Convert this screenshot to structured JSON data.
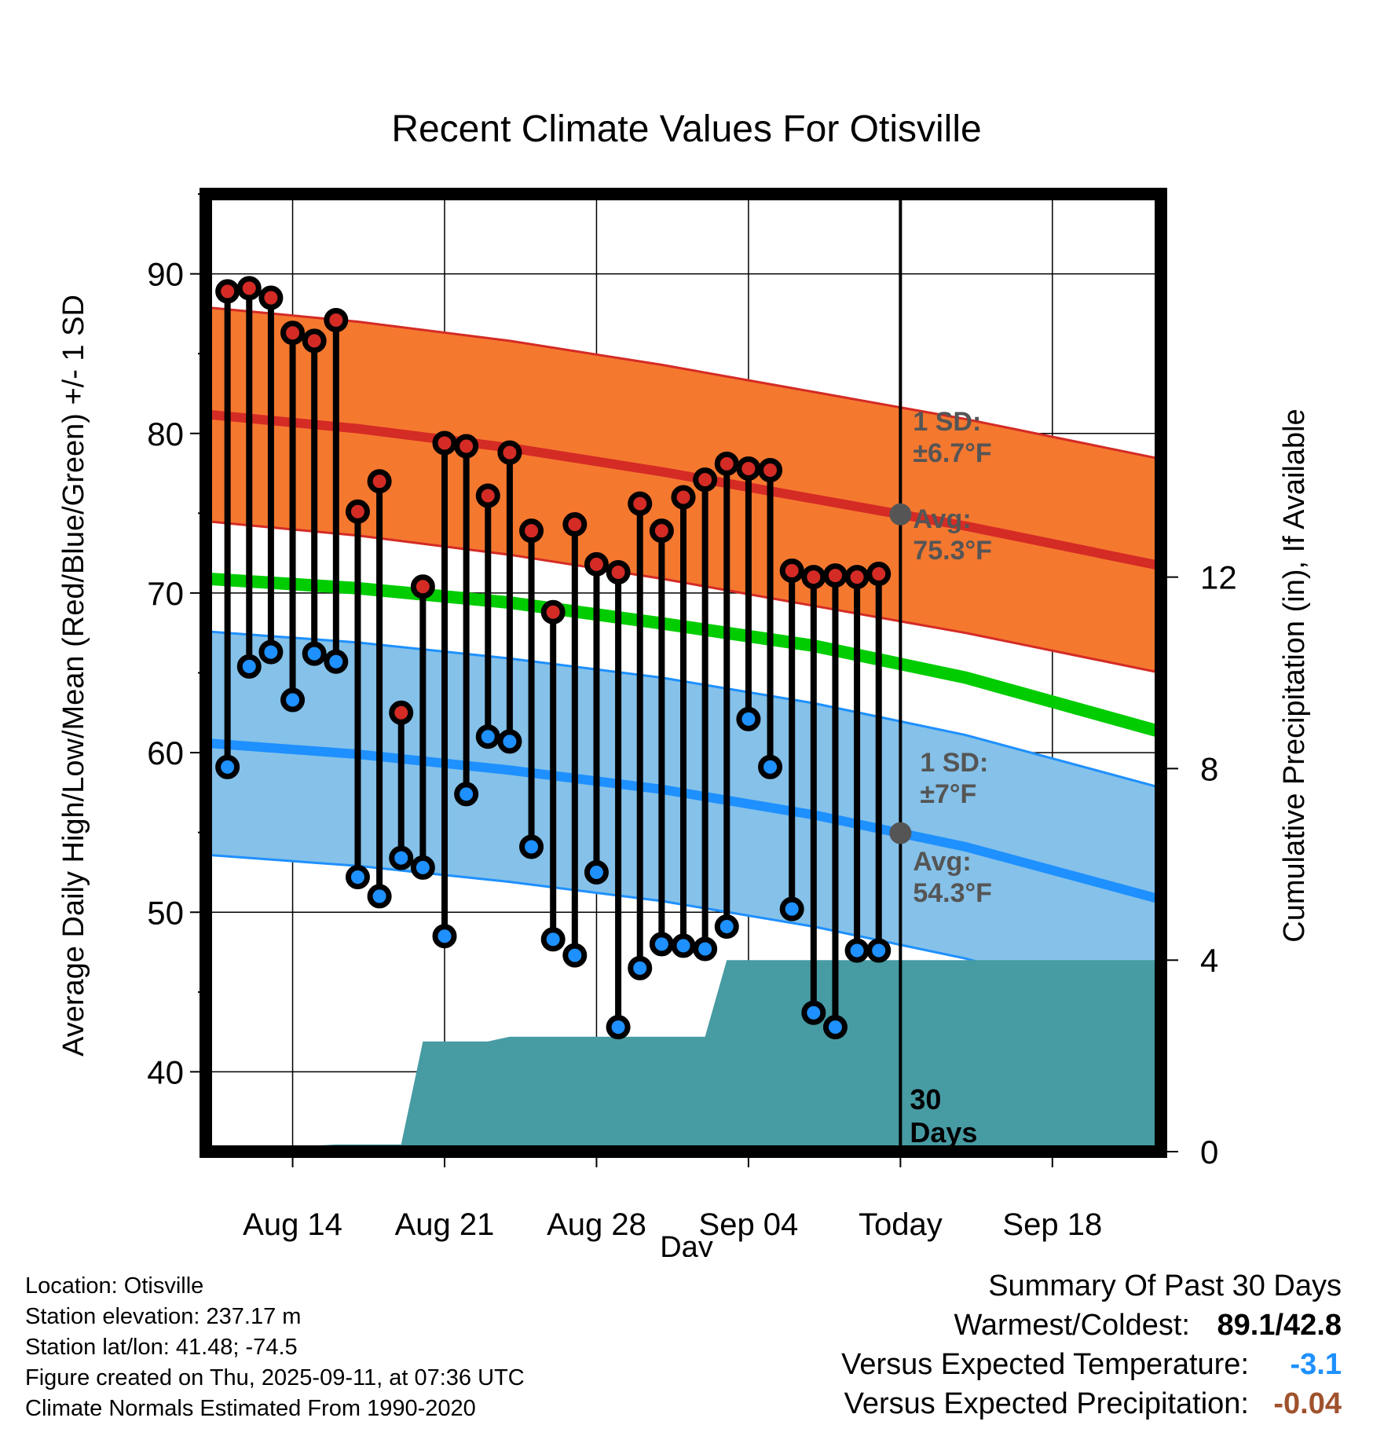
{
  "chart_data": {
    "type": "line",
    "title": "Recent Climate Values For Otisville",
    "xlabel": "Day",
    "ylabel": "Average Daily High/Low/Mean (Red/Blue/Green) +/- 1 SD",
    "y2label": "Cumulative Precipitation (in), If Available",
    "x_range": [
      "2025-08-10",
      "2025-09-23"
    ],
    "ylim": [
      35,
      95
    ],
    "y2lim": [
      0,
      20
    ],
    "x_ticks": [
      {
        "date": "2025-08-14",
        "label": "Aug 14"
      },
      {
        "date": "2025-08-21",
        "label": "Aug 21"
      },
      {
        "date": "2025-08-28",
        "label": "Aug 28"
      },
      {
        "date": "2025-09-04",
        "label": "Sep 04"
      },
      {
        "date": "2025-09-11",
        "label": "Today"
      },
      {
        "date": "2025-09-18",
        "label": "Sep 18"
      }
    ],
    "y_ticks": [
      40,
      50,
      60,
      70,
      80,
      90
    ],
    "y2_ticks": [
      0,
      4,
      8,
      12
    ],
    "today": "2025-09-11",
    "grid": true,
    "daily_observations": {
      "dates": [
        "2025-08-11",
        "2025-08-12",
        "2025-08-13",
        "2025-08-14",
        "2025-08-15",
        "2025-08-16",
        "2025-08-17",
        "2025-08-18",
        "2025-08-19",
        "2025-08-20",
        "2025-08-21",
        "2025-08-22",
        "2025-08-23",
        "2025-08-24",
        "2025-08-25",
        "2025-08-26",
        "2025-08-27",
        "2025-08-28",
        "2025-08-29",
        "2025-08-30",
        "2025-08-31",
        "2025-09-01",
        "2025-09-02",
        "2025-09-03",
        "2025-09-04",
        "2025-09-05",
        "2025-09-06",
        "2025-09-07",
        "2025-09-08",
        "2025-09-09",
        "2025-09-10"
      ],
      "high": [
        88.9,
        89.1,
        88.5,
        86.3,
        85.8,
        87.1,
        75.1,
        77.0,
        62.5,
        70.4,
        79.4,
        79.2,
        76.1,
        78.8,
        73.9,
        68.8,
        74.3,
        71.8,
        71.3,
        75.6,
        73.9,
        76.0,
        77.1,
        78.1,
        77.8,
        77.7,
        71.4,
        71.0,
        71.1,
        71.0,
        71.2
      ],
      "low": [
        59.1,
        65.4,
        66.3,
        63.3,
        66.2,
        65.7,
        52.2,
        51.0,
        53.4,
        52.8,
        48.5,
        57.4,
        61.0,
        60.7,
        54.1,
        48.3,
        47.3,
        52.5,
        42.8,
        46.5,
        48.0,
        47.9,
        47.7,
        49.1,
        62.1,
        59.1,
        50.2,
        43.7,
        42.8,
        47.6,
        47.6
      ]
    },
    "normals": {
      "dates": [
        "2025-08-10",
        "2025-08-17",
        "2025-08-24",
        "2025-08-31",
        "2025-09-07",
        "2025-09-14",
        "2025-09-23"
      ],
      "avg_high": [
        81.2,
        80.3,
        79.1,
        77.6,
        75.9,
        74.2,
        71.7
      ],
      "avg_high_sd": 6.7,
      "avg_low": [
        60.6,
        59.9,
        58.9,
        57.7,
        56.1,
        54.1,
        50.8
      ],
      "avg_low_sd": 7,
      "avg_mean": [
        70.9,
        70.3,
        69.4,
        68.1,
        66.7,
        64.7,
        61.3
      ]
    },
    "cumulative_precipitation": {
      "dates": [
        "2025-08-10",
        "2025-08-13",
        "2025-08-14",
        "2025-08-16",
        "2025-08-19",
        "2025-08-20",
        "2025-08-23",
        "2025-08-24",
        "2025-09-02",
        "2025-09-03",
        "2025-09-23"
      ],
      "values": [
        0.0,
        0.0,
        0.1,
        0.15,
        0.15,
        2.3,
        2.3,
        2.4,
        2.4,
        4.0,
        4.0
      ]
    },
    "annotations": {
      "high_sd": "1 SD:\n±6.7°F",
      "high_avg": "Avg:\n75.3°F",
      "low_sd": "1 SD:\n±7°F",
      "low_avg": "Avg:\n54.3°F",
      "days": "30\nDays"
    },
    "colors": {
      "high_band": "#f5782f",
      "high_line": "#d42b25",
      "low_band": "#85c1e9",
      "low_line": "#1e90ff",
      "mean_line": "#00cc00",
      "precip_fill": "#479ba3",
      "high_marker": "#d42b25",
      "low_marker": "#1e90ff"
    }
  },
  "footer": {
    "location": "Location: Otisville",
    "elevation": "Station elevation: 237.17 m",
    "latlon": "Station lat/lon: 41.48; -74.5",
    "created": "Figure created on Thu, 2025-09-11, at 07:36 UTC",
    "normals": "Climate Normals Estimated From 1990-2020"
  },
  "summary": {
    "heading": "Summary Of Past 30 Days",
    "warm_cold_label": "Warmest/Coldest:",
    "warm_cold_value": "89.1/42.8",
    "temp_label": "Versus Expected Temperature:",
    "temp_value": "-3.1",
    "precip_label": "Versus Expected Precipitation:",
    "precip_value": "-0.04"
  }
}
